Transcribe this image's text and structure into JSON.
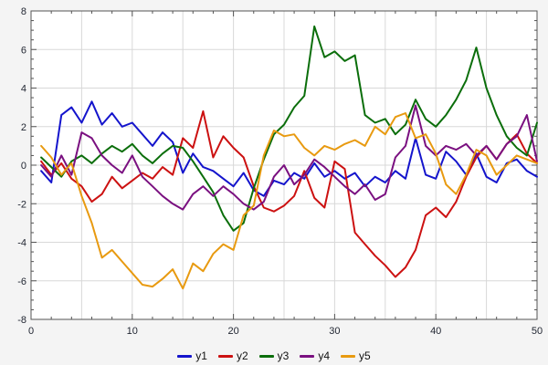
{
  "colors": {
    "background": "#f4f4f4",
    "plot_background": "#ffffff",
    "grid": "#d8d8d8",
    "axis": "#555555",
    "tick_label": "#1f2430"
  },
  "chart_data": {
    "type": "line",
    "title": "",
    "xlabel": "",
    "ylabel": "",
    "xlim": [
      0,
      50
    ],
    "ylim": [
      -8,
      8
    ],
    "x_ticks": [
      0,
      10,
      20,
      30,
      40,
      50
    ],
    "y_ticks": [
      -8,
      -6,
      -4,
      -2,
      0,
      2,
      4,
      6,
      8
    ],
    "x_minor_step": 2,
    "y_minor_step": 0.5,
    "x_grid_step": 5,
    "y_grid_step": 2,
    "grid": true,
    "legend_position": "bottom",
    "x": [
      1,
      2,
      3,
      4,
      5,
      6,
      7,
      8,
      9,
      10,
      11,
      12,
      13,
      14,
      15,
      16,
      17,
      18,
      19,
      20,
      21,
      22,
      23,
      24,
      25,
      26,
      27,
      28,
      29,
      30,
      31,
      32,
      33,
      34,
      35,
      36,
      37,
      38,
      39,
      40,
      41,
      42,
      43,
      44,
      45,
      46,
      47,
      48,
      49,
      50
    ],
    "series": [
      {
        "name": "y1",
        "color": "#1414cc",
        "values": [
          -0.3,
          -0.9,
          2.6,
          3.0,
          2.2,
          3.3,
          2.1,
          2.7,
          2.0,
          2.2,
          1.6,
          1.0,
          1.7,
          1.2,
          -0.4,
          0.6,
          -0.1,
          -0.3,
          -0.7,
          -1.1,
          -0.4,
          -1.3,
          -1.6,
          -0.8,
          -1.0,
          -0.4,
          -0.7,
          0.1,
          -0.6,
          -0.3,
          -0.7,
          -0.4,
          -1.1,
          -0.6,
          -0.9,
          -0.3,
          -0.7,
          1.4,
          -0.5,
          -0.7,
          0.7,
          0.2,
          -0.5,
          0.6,
          -0.6,
          -0.9,
          0.1,
          0.3,
          -0.3,
          -0.6
        ]
      },
      {
        "name": "y2",
        "color": "#cc1111",
        "values": [
          0.2,
          -0.5,
          0.1,
          -0.7,
          -1.1,
          -1.9,
          -1.5,
          -0.6,
          -1.2,
          -0.8,
          -0.4,
          -0.7,
          -0.1,
          -0.5,
          1.4,
          0.9,
          2.8,
          0.4,
          1.5,
          0.9,
          0.4,
          -1.1,
          -2.2,
          -2.4,
          -2.1,
          -1.6,
          -0.3,
          -1.7,
          -2.2,
          0.2,
          -0.2,
          -3.5,
          -4.1,
          -4.7,
          -5.2,
          -5.8,
          -5.3,
          -4.4,
          -2.6,
          -2.2,
          -2.7,
          -1.9,
          -0.6,
          0.4,
          1.0,
          0.3,
          1.1,
          1.6,
          0.6,
          0.1
        ]
      },
      {
        "name": "y3",
        "color": "#0b6e0b",
        "values": [
          0.4,
          -0.1,
          -0.6,
          0.2,
          0.5,
          0.1,
          0.6,
          1.0,
          0.7,
          1.1,
          0.5,
          0.1,
          0.6,
          1.0,
          0.9,
          0.2,
          -0.6,
          -1.4,
          -2.6,
          -3.4,
          -3.0,
          -1.2,
          0.3,
          1.6,
          2.1,
          3.0,
          3.6,
          7.2,
          5.6,
          5.9,
          5.4,
          5.7,
          2.6,
          2.2,
          2.4,
          1.6,
          2.1,
          3.4,
          2.4,
          2.0,
          2.6,
          3.4,
          4.4,
          6.1,
          4.0,
          2.6,
          1.5,
          0.9,
          0.5,
          2.2
        ]
      },
      {
        "name": "y4",
        "color": "#7a1080",
        "values": [
          0.0,
          -0.6,
          0.5,
          -0.5,
          1.7,
          1.4,
          0.5,
          0.0,
          -0.4,
          0.5,
          -0.6,
          -1.1,
          -1.6,
          -2.0,
          -2.3,
          -1.5,
          -1.1,
          -1.6,
          -1.1,
          -1.5,
          -2.0,
          -2.3,
          -1.9,
          -0.6,
          0.0,
          -1.0,
          -0.5,
          0.3,
          -0.1,
          -0.6,
          -1.1,
          -1.5,
          -1.0,
          -1.8,
          -1.5,
          0.4,
          1.0,
          3.1,
          1.0,
          0.5,
          1.0,
          0.8,
          1.1,
          0.5,
          1.0,
          0.3,
          1.1,
          1.5,
          2.6,
          0.2
        ]
      },
      {
        "name": "y5",
        "color": "#e89a10",
        "values": [
          1.0,
          0.4,
          -0.5,
          0.1,
          -1.6,
          -3.0,
          -4.8,
          -4.4,
          -5.0,
          -5.6,
          -6.2,
          -6.3,
          -5.9,
          -5.4,
          -6.4,
          -5.1,
          -5.5,
          -4.6,
          -4.1,
          -4.4,
          -2.6,
          -2.1,
          0.5,
          1.8,
          1.5,
          1.6,
          0.9,
          0.5,
          1.0,
          0.8,
          1.1,
          1.3,
          1.0,
          2.0,
          1.6,
          2.5,
          2.7,
          1.4,
          1.6,
          0.6,
          -1.0,
          -1.5,
          -0.5,
          0.8,
          0.5,
          -0.5,
          0.0,
          0.5,
          0.3,
          0.1
        ]
      }
    ]
  }
}
